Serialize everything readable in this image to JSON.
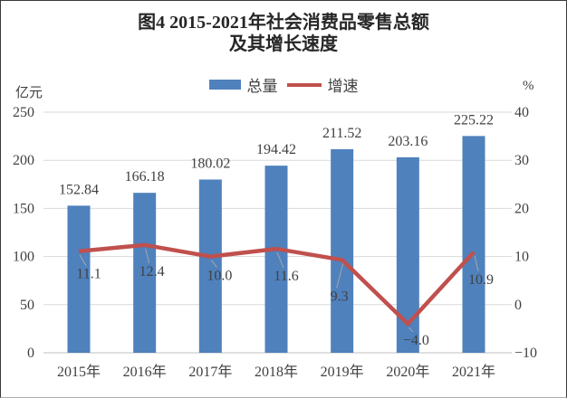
{
  "title": {
    "line1": "图4  2015-2021年社会消费品零售总额",
    "line2": "及其增长速度"
  },
  "colors": {
    "bar": "#4F81BD",
    "line": "#C0504D",
    "grid": "#D9D9D9",
    "axis": "#BFBFBF",
    "leader": "#A6A6A6",
    "text": "#404040"
  },
  "chart_data": {
    "type": "bar+line",
    "categories": [
      "2015年",
      "2016年",
      "2017年",
      "2018年",
      "2019年",
      "2020年",
      "2021年"
    ],
    "series": [
      {
        "name": "总量",
        "type": "bar",
        "axis": "left",
        "color": "#4F81BD",
        "values": [
          152.84,
          166.18,
          180.02,
          194.42,
          211.52,
          203.16,
          225.22
        ]
      },
      {
        "name": "增速",
        "type": "line",
        "axis": "right",
        "color": "#C0504D",
        "values": [
          11.1,
          12.4,
          10.0,
          11.6,
          9.3,
          -4.0,
          10.9
        ]
      }
    ],
    "left_axis": {
      "unit": "亿元",
      "min": 0,
      "max": 250,
      "ticks": [
        0,
        50,
        100,
        150,
        200,
        250
      ]
    },
    "right_axis": {
      "unit": "%",
      "min": -10,
      "max": 40,
      "ticks": [
        -10,
        0,
        10,
        20,
        30,
        40
      ]
    },
    "grid": true,
    "legend_position": "top-center",
    "bar_label_decimals": 2,
    "line_label_decimals": 1
  }
}
